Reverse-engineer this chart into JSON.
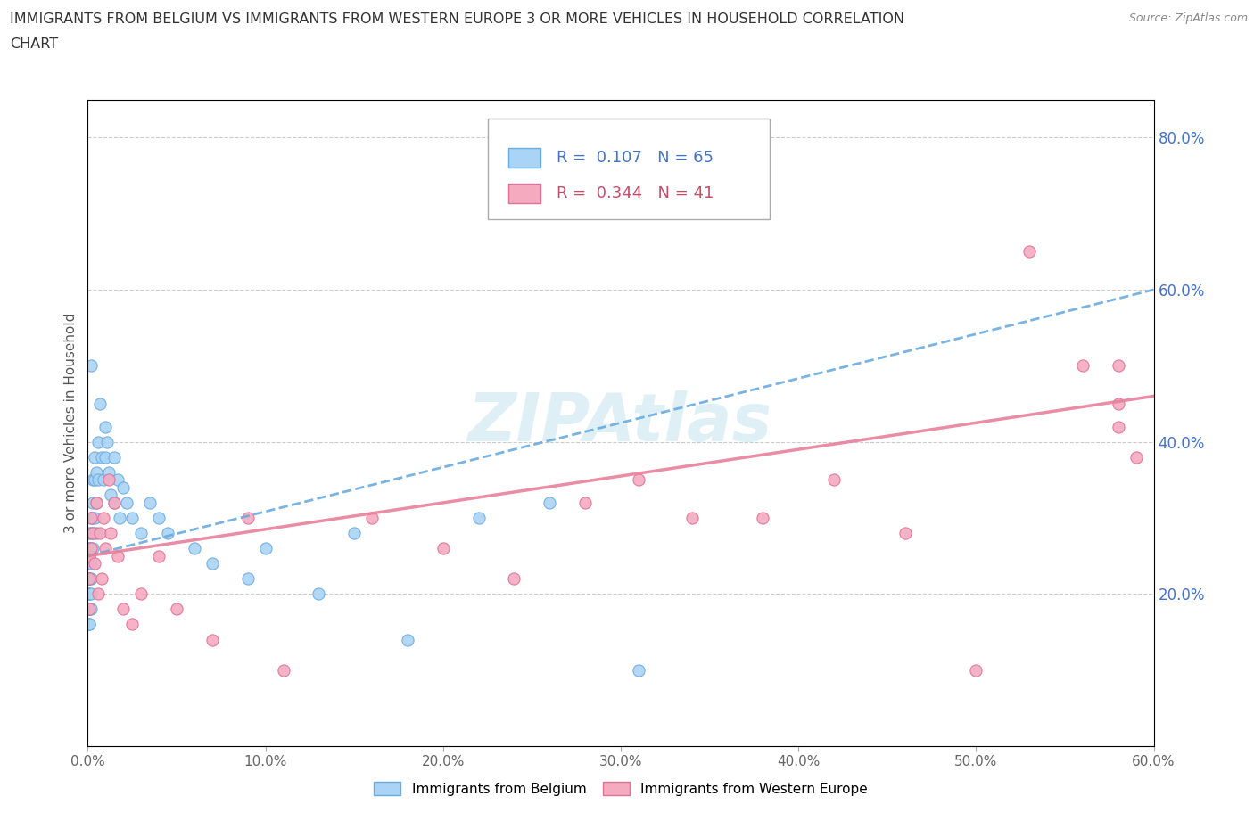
{
  "title_line1": "IMMIGRANTS FROM BELGIUM VS IMMIGRANTS FROM WESTERN EUROPE 3 OR MORE VEHICLES IN HOUSEHOLD CORRELATION",
  "title_line2": "CHART",
  "source": "Source: ZipAtlas.com",
  "ylabel": "3 or more Vehicles in Household",
  "xlim": [
    0.0,
    0.6
  ],
  "ylim": [
    0.0,
    0.85
  ],
  "xtick_labels": [
    "0.0%",
    "10.0%",
    "20.0%",
    "30.0%",
    "40.0%",
    "50.0%",
    "60.0%"
  ],
  "xtick_values": [
    0.0,
    0.1,
    0.2,
    0.3,
    0.4,
    0.5,
    0.6
  ],
  "ytick_labels": [
    "20.0%",
    "40.0%",
    "60.0%",
    "80.0%"
  ],
  "ytick_values": [
    0.2,
    0.4,
    0.6,
    0.8
  ],
  "belgium_color": "#aad4f5",
  "belgium_edge_color": "#6aabdf",
  "western_europe_color": "#f5aac0",
  "western_europe_edge_color": "#e07095",
  "trendline_belgium_color": "#6aabdf",
  "trendline_western_europe_color": "#e8809a",
  "legend_belgium_color": "#4472c4",
  "legend_weu_color": "#c0506a",
  "watermark": "ZIPAtlas",
  "background_color": "#ffffff",
  "grid_color": "#cccccc",
  "belgium_R": 0.107,
  "belgium_N": 65,
  "western_europe_R": 0.344,
  "western_europe_N": 41,
  "bel_x": [
    0.001,
    0.001,
    0.001,
    0.001,
    0.001,
    0.001,
    0.001,
    0.001,
    0.001,
    0.001,
    0.001,
    0.001,
    0.001,
    0.001,
    0.001,
    0.002,
    0.002,
    0.002,
    0.002,
    0.002,
    0.002,
    0.002,
    0.002,
    0.003,
    0.003,
    0.003,
    0.003,
    0.003,
    0.004,
    0.004,
    0.004,
    0.005,
    0.005,
    0.005,
    0.006,
    0.006,
    0.007,
    0.008,
    0.009,
    0.01,
    0.01,
    0.011,
    0.012,
    0.013,
    0.015,
    0.015,
    0.017,
    0.018,
    0.02,
    0.022,
    0.025,
    0.03,
    0.035,
    0.04,
    0.045,
    0.06,
    0.07,
    0.09,
    0.1,
    0.13,
    0.15,
    0.18,
    0.22,
    0.26,
    0.31
  ],
  "bel_y": [
    0.26,
    0.28,
    0.24,
    0.22,
    0.2,
    0.18,
    0.16,
    0.26,
    0.24,
    0.22,
    0.2,
    0.18,
    0.16,
    0.25,
    0.22,
    0.3,
    0.28,
    0.26,
    0.24,
    0.22,
    0.2,
    0.18,
    0.5,
    0.35,
    0.32,
    0.3,
    0.28,
    0.26,
    0.38,
    0.35,
    0.3,
    0.36,
    0.32,
    0.28,
    0.4,
    0.35,
    0.45,
    0.38,
    0.35,
    0.42,
    0.38,
    0.4,
    0.36,
    0.33,
    0.38,
    0.32,
    0.35,
    0.3,
    0.34,
    0.32,
    0.3,
    0.28,
    0.32,
    0.3,
    0.28,
    0.26,
    0.24,
    0.22,
    0.26,
    0.2,
    0.28,
    0.14,
    0.3,
    0.32,
    0.1
  ],
  "weu_x": [
    0.001,
    0.001,
    0.001,
    0.002,
    0.002,
    0.003,
    0.004,
    0.005,
    0.006,
    0.007,
    0.008,
    0.009,
    0.01,
    0.012,
    0.013,
    0.015,
    0.017,
    0.02,
    0.025,
    0.03,
    0.04,
    0.05,
    0.07,
    0.09,
    0.11,
    0.16,
    0.2,
    0.24,
    0.28,
    0.31,
    0.34,
    0.38,
    0.42,
    0.46,
    0.5,
    0.53,
    0.56,
    0.58,
    0.59,
    0.58,
    0.58
  ],
  "weu_y": [
    0.25,
    0.22,
    0.18,
    0.3,
    0.26,
    0.28,
    0.24,
    0.32,
    0.2,
    0.28,
    0.22,
    0.3,
    0.26,
    0.35,
    0.28,
    0.32,
    0.25,
    0.18,
    0.16,
    0.2,
    0.25,
    0.18,
    0.14,
    0.3,
    0.1,
    0.3,
    0.26,
    0.22,
    0.32,
    0.35,
    0.3,
    0.3,
    0.35,
    0.28,
    0.1,
    0.65,
    0.5,
    0.5,
    0.38,
    0.42,
    0.45
  ]
}
